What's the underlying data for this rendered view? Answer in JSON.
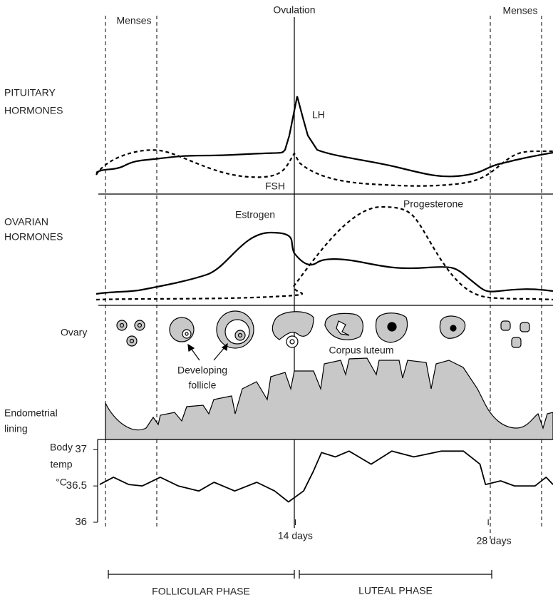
{
  "header": {
    "menses_left": "Menses",
    "ovulation": "Ovulation",
    "menses_right": "Menses"
  },
  "pituitary": {
    "label": [
      "PITUITARY",
      "HORMONES"
    ],
    "lh": "LH",
    "fsh": "FSH"
  },
  "ovarian": {
    "label": [
      "OVARIAN",
      "HORMONES"
    ],
    "estrogen": "Estrogen",
    "progesterone": "Progesterone"
  },
  "ovary": {
    "label": "Ovary",
    "developing_follicle": [
      "Developing",
      "follicle"
    ],
    "corpus_luteum": "Corpus luteum"
  },
  "endometrium": {
    "label": [
      "Endometrial",
      "lining"
    ]
  },
  "chart_data": {
    "type": "line",
    "y_label": [
      "Body",
      "temp",
      "°C"
    ],
    "x": [
      -0.2,
      0.8,
      1.9,
      2.9,
      4.2,
      5.5,
      7.0,
      8.1,
      9.6,
      11.2,
      12.5,
      13.5,
      14.6,
      15.3,
      15.9,
      16.9,
      17.9,
      19.5,
      21.0,
      22.6,
      24.6,
      26.2,
      27.4,
      27.8,
      28.9,
      29.9,
      31.4,
      32.2,
      32.7
    ],
    "values": [
      36.52,
      36.62,
      36.52,
      36.5,
      36.62,
      36.5,
      36.43,
      36.55,
      36.43,
      36.55,
      36.43,
      36.28,
      36.43,
      36.7,
      36.96,
      36.9,
      36.98,
      36.8,
      36.98,
      36.9,
      36.98,
      36.98,
      36.8,
      36.52,
      36.57,
      36.5,
      36.5,
      36.62,
      36.52
    ],
    "xlim": [
      -0.4,
      32.7
    ],
    "ylim": [
      36,
      37.14
    ],
    "yticks": [
      36,
      36.5,
      37
    ],
    "xticks": [
      {
        "value": 14,
        "label": "14 days"
      },
      {
        "value": 28,
        "label": "28 days"
      }
    ],
    "color": "#000000"
  },
  "phases": {
    "follicular": "FOLLICULAR PHASE",
    "luteal": "LUTEAL PHASE"
  }
}
